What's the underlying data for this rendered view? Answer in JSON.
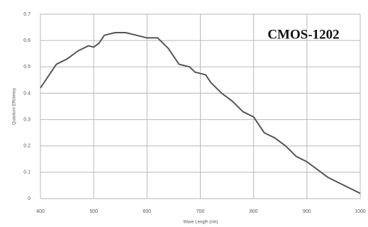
{
  "chart_data": {
    "type": "line",
    "annotation": "CMOS-1202",
    "x_label": "Wave Length (nm)",
    "y_label": "Quantum Efficiency",
    "x": [
      400,
      420,
      430,
      450,
      470,
      490,
      500,
      510,
      520,
      540,
      560,
      580,
      600,
      620,
      640,
      660,
      680,
      690,
      710,
      720,
      740,
      760,
      780,
      800,
      820,
      840,
      860,
      880,
      900,
      920,
      940,
      960,
      980,
      1000
    ],
    "series": [
      {
        "name": "Quantum Efficiency",
        "color": "#555555",
        "values": [
          0.42,
          0.48,
          0.51,
          0.53,
          0.56,
          0.58,
          0.575,
          0.59,
          0.62,
          0.63,
          0.63,
          0.62,
          0.61,
          0.61,
          0.57,
          0.51,
          0.5,
          0.48,
          0.47,
          0.44,
          0.4,
          0.37,
          0.33,
          0.31,
          0.25,
          0.23,
          0.2,
          0.16,
          0.14,
          0.11,
          0.08,
          0.06,
          0.04,
          0.02
        ]
      }
    ],
    "xlim": [
      400,
      1000
    ],
    "xticks": [
      400,
      500,
      600,
      700,
      800,
      900,
      1000
    ],
    "ylim": [
      0,
      0.7
    ],
    "yticks": [
      0,
      0.1,
      0.2,
      0.3,
      0.4,
      0.5,
      0.6,
      0.7
    ],
    "grid": true
  }
}
